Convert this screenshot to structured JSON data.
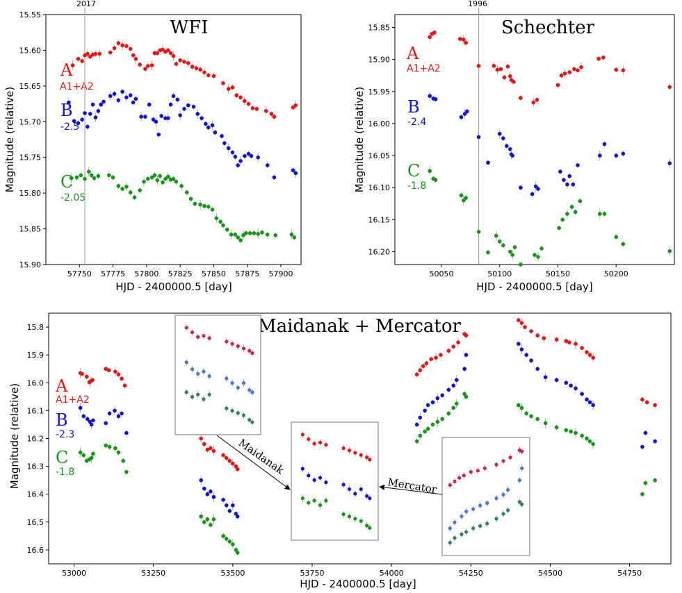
{
  "colors": {
    "A": "#ee1111",
    "B": "#1111dd",
    "C": "#119911",
    "A_alt": "#d8204a",
    "B_alt": "#4477dd",
    "C_alt": "#2f8060"
  },
  "panels": {
    "wfi": {
      "title": "WFI",
      "top_label": "2017",
      "xlabel": "HJD - 2400000.5 [day]",
      "ylabel": "Magnitude (relative)",
      "xticks": [
        "57750",
        "57775",
        "57800",
        "57825",
        "57850",
        "57875",
        "57900"
      ],
      "yticks": [
        "15.55",
        "15.60",
        "15.65",
        "15.70",
        "15.75",
        "15.80",
        "15.85",
        "15.90"
      ],
      "labA": "A",
      "subA": "A1+A2",
      "labB": "B",
      "subB": "-2.5",
      "labC": "C",
      "subC": "-2.05"
    },
    "sch": {
      "title": "Schechter",
      "top_label": "1996",
      "xlabel": "HJD - 2400000.5 [day]",
      "ylabel": "Magnitude (relative)",
      "xticks": [
        "50050",
        "50100",
        "50150",
        "50200"
      ],
      "yticks": [
        "15.85",
        "15.90",
        "15.95",
        "16.00",
        "16.05",
        "16.10",
        "16.15",
        "16.20"
      ],
      "labA": "A",
      "subA": "A1+A2",
      "labB": "B",
      "subB": "-2.4",
      "labC": "C",
      "subC": "-1.8"
    },
    "mm": {
      "title": "Maidanak + Mercator",
      "xlabel": "HJD - 2400000.5 [day]",
      "ylabel": "Magnitude (relative)",
      "xticks": [
        "53000",
        "53250",
        "53500",
        "53750",
        "54000",
        "54250",
        "54500",
        "54750"
      ],
      "yticks": [
        "15.8",
        "15.9",
        "16.0",
        "16.1",
        "16.2",
        "16.3",
        "16.4",
        "16.5",
        "16.6"
      ],
      "labA": "A",
      "subA": "A1+A2",
      "labB": "B",
      "subB": "-2.3",
      "labC": "C",
      "subC": "-1.8",
      "arrow_maidanak": "Maidanak",
      "arrow_mercator": "Mercator"
    }
  },
  "chart_data": [
    {
      "type": "scatter",
      "title": "WFI",
      "xlabel": "HJD - 2400000.5 [day]",
      "ylabel": "Magnitude (relative)",
      "xlim": [
        57725,
        57915
      ],
      "ylim": [
        15.9,
        15.55
      ],
      "vline": 57754,
      "series": [
        {
          "name": "A",
          "x": [
            57745,
            57749,
            57752,
            57754,
            57756,
            57758,
            57760,
            57762,
            57765,
            57773,
            57776,
            57779,
            57782,
            57785,
            57788,
            57790,
            57792,
            57795,
            57799,
            57801,
            57804,
            57806,
            57808,
            57810,
            57812,
            57814,
            57816,
            57818,
            57820,
            57822,
            57825,
            57828,
            57831,
            57834,
            57837,
            57840,
            57843,
            57846,
            57850,
            57857,
            57861,
            57864,
            57867,
            57870,
            57873,
            57876,
            57879,
            57882,
            57889,
            57893,
            57895,
            57909,
            57911
          ],
          "y": [
            15.621,
            15.612,
            15.615,
            15.607,
            15.605,
            15.609,
            15.606,
            15.605,
            15.605,
            15.603,
            15.597,
            15.59,
            15.593,
            15.594,
            15.598,
            15.607,
            15.612,
            15.62,
            15.626,
            15.622,
            15.621,
            15.604,
            15.604,
            15.6,
            15.599,
            15.602,
            15.6,
            15.604,
            15.608,
            15.619,
            15.614,
            15.616,
            15.618,
            15.623,
            15.625,
            15.627,
            15.631,
            15.635,
            15.636,
            15.646,
            15.654,
            15.652,
            15.663,
            15.666,
            15.671,
            15.675,
            15.681,
            15.682,
            15.685,
            15.689,
            15.693,
            15.68,
            15.677
          ]
        },
        {
          "name": "B",
          "x": [
            57742,
            57746,
            57749,
            57752,
            57754,
            57756,
            57758,
            57760,
            57762,
            57764,
            57766,
            57768,
            57773,
            57776,
            57779,
            57782,
            57785,
            57788,
            57790,
            57792,
            57796,
            57799,
            57802,
            57805,
            57807,
            57809,
            57811,
            57814,
            57816,
            57818,
            57820,
            57823,
            57825,
            57828,
            57831,
            57835,
            57838,
            57841,
            57844,
            57846,
            57849,
            57851,
            57856,
            57858,
            57861,
            57864,
            57866,
            57868,
            57870,
            57873,
            57876,
            57878,
            57883,
            57890,
            57895,
            57909,
            57911
          ],
          "y": [
            15.673,
            15.699,
            15.702,
            15.697,
            15.688,
            15.707,
            15.689,
            15.676,
            15.694,
            15.685,
            15.676,
            15.672,
            15.664,
            15.661,
            15.67,
            15.658,
            15.666,
            15.663,
            15.673,
            15.668,
            15.693,
            15.693,
            15.676,
            15.697,
            15.7,
            15.718,
            15.692,
            15.695,
            15.695,
            15.676,
            15.664,
            15.669,
            15.691,
            15.682,
            15.677,
            15.679,
            15.689,
            15.695,
            15.703,
            15.708,
            15.705,
            15.715,
            15.72,
            15.73,
            15.737,
            15.743,
            15.749,
            15.761,
            15.755,
            15.748,
            15.745,
            15.748,
            15.75,
            15.761,
            15.778,
            15.768,
            15.772
          ]
        },
        {
          "name": "C",
          "x": [
            57744,
            57748,
            57751,
            57754,
            57757,
            57759,
            57761,
            57764,
            57772,
            57775,
            57779,
            57782,
            57785,
            57788,
            57791,
            57795,
            57798,
            57801,
            57804,
            57806,
            57808,
            57810,
            57812,
            57814,
            57816,
            57818,
            57820,
            57822,
            57826,
            57830,
            57833,
            57836,
            57840,
            57843,
            57846,
            57849,
            57852,
            57855,
            57857,
            57860,
            57863,
            57866,
            57868,
            57870,
            57872,
            57874,
            57877,
            57880,
            57883,
            57886,
            57890,
            57896,
            57908,
            57910
          ],
          "y": [
            15.779,
            15.778,
            15.775,
            15.78,
            15.77,
            15.775,
            15.779,
            15.776,
            15.775,
            15.778,
            15.79,
            15.794,
            15.791,
            15.799,
            15.806,
            15.796,
            15.784,
            15.78,
            15.778,
            15.775,
            15.782,
            15.776,
            15.785,
            15.78,
            15.777,
            15.781,
            15.78,
            15.784,
            15.79,
            15.799,
            15.808,
            15.815,
            15.816,
            15.818,
            15.819,
            15.823,
            15.835,
            15.84,
            15.845,
            15.851,
            15.858,
            15.858,
            15.862,
            15.866,
            15.859,
            15.856,
            15.856,
            15.856,
            15.857,
            15.855,
            15.858,
            15.859,
            15.858,
            15.862
          ]
        }
      ]
    },
    {
      "type": "scatter",
      "title": "Schechter",
      "xlabel": "HJD - 2400000.5 [day]",
      "ylabel": "Magnitude (relative)",
      "xlim": [
        50010,
        50250
      ],
      "ylim": [
        16.22,
        15.83
      ],
      "vline": 50082,
      "series": [
        {
          "name": "A",
          "x": [
            50040,
            50042,
            50044,
            50066,
            50069,
            50071,
            50082,
            50095,
            50098,
            50101,
            50104,
            50107,
            50109,
            50110,
            50112,
            50118,
            50129,
            50132,
            50150,
            50153,
            50156,
            50160,
            50164,
            50167,
            50170,
            50185,
            50189,
            50200,
            50206,
            50246
          ],
          "y": [
            15.865,
            15.86,
            15.858,
            15.868,
            15.869,
            15.874,
            15.91,
            15.91,
            15.916,
            15.915,
            15.928,
            15.911,
            15.926,
            15.932,
            15.935,
            15.96,
            15.967,
            15.963,
            15.94,
            15.925,
            15.922,
            15.92,
            15.915,
            15.917,
            15.912,
            15.899,
            15.897,
            15.916,
            15.917,
            15.943
          ]
        },
        {
          "name": "B",
          "x": [
            50040,
            50043,
            50045,
            50067,
            50070,
            50072,
            50082,
            50090,
            50100,
            50103,
            50106,
            50109,
            50110,
            50111,
            50118,
            50128,
            50131,
            50133,
            50152,
            50155,
            50158,
            50160,
            50163,
            50167,
            50186,
            50190,
            50200,
            50206,
            50246
          ],
          "y": [
            15.957,
            15.961,
            15.962,
            15.99,
            15.985,
            15.981,
            16.021,
            16.061,
            16.016,
            16.023,
            16.035,
            16.04,
            16.048,
            16.05,
            16.1,
            16.11,
            16.098,
            16.102,
            16.075,
            16.088,
            16.095,
            16.082,
            16.095,
            16.065,
            16.05,
            16.032,
            16.05,
            16.047,
            16.062
          ]
        },
        {
          "name": "C",
          "x": [
            50040,
            50043,
            50045,
            50067,
            50069,
            50071,
            50082,
            50090,
            50097,
            50100,
            50103,
            50109,
            50111,
            50113,
            50118,
            50130,
            50133,
            50136,
            50151,
            50154,
            50158,
            50162,
            50165,
            50169,
            50186,
            50190,
            50200,
            50206,
            50246
          ],
          "y": [
            16.074,
            16.086,
            16.088,
            16.112,
            16.12,
            16.116,
            16.169,
            16.201,
            16.175,
            16.184,
            16.19,
            16.2,
            16.205,
            16.193,
            16.22,
            16.205,
            16.208,
            16.195,
            16.163,
            16.15,
            16.141,
            16.13,
            16.138,
            16.121,
            16.141,
            16.141,
            16.177,
            16.188,
            16.199
          ]
        }
      ]
    },
    {
      "type": "scatter",
      "title": "Maidanak + Mercator",
      "xlabel": "HJD - 2400000.5 [day]",
      "ylabel": "Magnitude (relative)",
      "xlim": [
        52920,
        54880
      ],
      "ylim": [
        16.65,
        15.75
      ],
      "series": [
        {
          "name": "A",
          "x": [
            53020,
            53025,
            53040,
            53048,
            53052,
            53058,
            53100,
            53110,
            53130,
            53140,
            53150,
            53160,
            53400,
            53410,
            53420,
            53430,
            53440,
            53470,
            53480,
            53490,
            53500,
            53510,
            53515,
            54080,
            54090,
            54100,
            54110,
            54125,
            54140,
            54155,
            54180,
            54195,
            54210,
            54230,
            54235,
            54400,
            54410,
            54420,
            54440,
            54460,
            54480,
            54520,
            54550,
            54560,
            54580,
            54600,
            54615,
            54625,
            54635,
            54790,
            54805,
            54830
          ],
          "y": [
            15.965,
            15.968,
            15.978,
            15.998,
            15.995,
            15.99,
            15.95,
            15.955,
            15.96,
            15.97,
            15.985,
            16.01,
            16.2,
            16.22,
            16.24,
            16.235,
            16.245,
            16.26,
            16.27,
            16.28,
            16.29,
            16.3,
            16.31,
            15.97,
            15.955,
            15.94,
            15.93,
            15.915,
            15.91,
            15.9,
            15.885,
            15.87,
            15.855,
            15.825,
            15.83,
            15.775,
            15.785,
            15.8,
            15.815,
            15.83,
            15.84,
            15.845,
            15.85,
            15.855,
            15.86,
            15.875,
            15.89,
            15.9,
            15.91,
            16.06,
            16.07,
            16.08
          ]
        },
        {
          "name": "B",
          "x": [
            53020,
            53030,
            53042,
            53050,
            53055,
            53060,
            53100,
            53112,
            53128,
            53140,
            53150,
            53165,
            53400,
            53410,
            53420,
            53430,
            53440,
            53470,
            53480,
            53490,
            53500,
            53510,
            53515,
            54080,
            54090,
            54105,
            54115,
            54130,
            54145,
            54160,
            54180,
            54195,
            54205,
            54230,
            54235,
            54400,
            54410,
            54425,
            54440,
            54460,
            54485,
            54520,
            54550,
            54565,
            54580,
            54600,
            54615,
            54625,
            54635,
            54790,
            54800,
            54830
          ],
          "y": [
            16.09,
            16.12,
            16.13,
            16.14,
            16.15,
            16.135,
            16.145,
            16.11,
            16.1,
            16.12,
            16.11,
            16.18,
            16.35,
            16.38,
            16.4,
            16.39,
            16.41,
            16.42,
            16.44,
            16.46,
            16.44,
            16.47,
            16.48,
            16.15,
            16.125,
            16.1,
            16.08,
            16.07,
            16.055,
            16.045,
            16.025,
            16.01,
            15.99,
            15.95,
            15.9,
            15.86,
            15.88,
            15.9,
            15.92,
            15.95,
            15.98,
            15.99,
            16.0,
            16.01,
            16.02,
            16.04,
            16.06,
            16.07,
            16.08,
            16.23,
            16.18,
            16.21
          ]
        },
        {
          "name": "C",
          "x": [
            53020,
            53030,
            53040,
            53048,
            53055,
            53060,
            53100,
            53112,
            53130,
            53140,
            53155,
            53165,
            53400,
            53410,
            53420,
            53430,
            53440,
            53470,
            53480,
            53490,
            53500,
            53510,
            53515,
            54080,
            54090,
            54105,
            54115,
            54130,
            54145,
            54160,
            54180,
            54195,
            54205,
            54230,
            54235,
            54400,
            54410,
            54425,
            54440,
            54460,
            54485,
            54520,
            54550,
            54565,
            54580,
            54600,
            54615,
            54625,
            54635,
            54790,
            54800,
            54830
          ],
          "y": [
            16.25,
            16.26,
            16.28,
            16.275,
            16.27,
            16.255,
            16.225,
            16.23,
            16.235,
            16.25,
            16.28,
            16.32,
            16.48,
            16.5,
            16.49,
            16.51,
            16.49,
            16.55,
            16.56,
            16.57,
            16.58,
            16.6,
            16.61,
            16.21,
            16.19,
            16.175,
            16.165,
            16.15,
            16.14,
            16.13,
            16.11,
            16.09,
            16.075,
            16.04,
            16.05,
            16.08,
            16.09,
            16.11,
            16.12,
            16.13,
            16.145,
            16.16,
            16.17,
            16.175,
            16.18,
            16.19,
            16.2,
            16.21,
            16.22,
            16.4,
            16.36,
            16.35
          ]
        }
      ]
    }
  ]
}
